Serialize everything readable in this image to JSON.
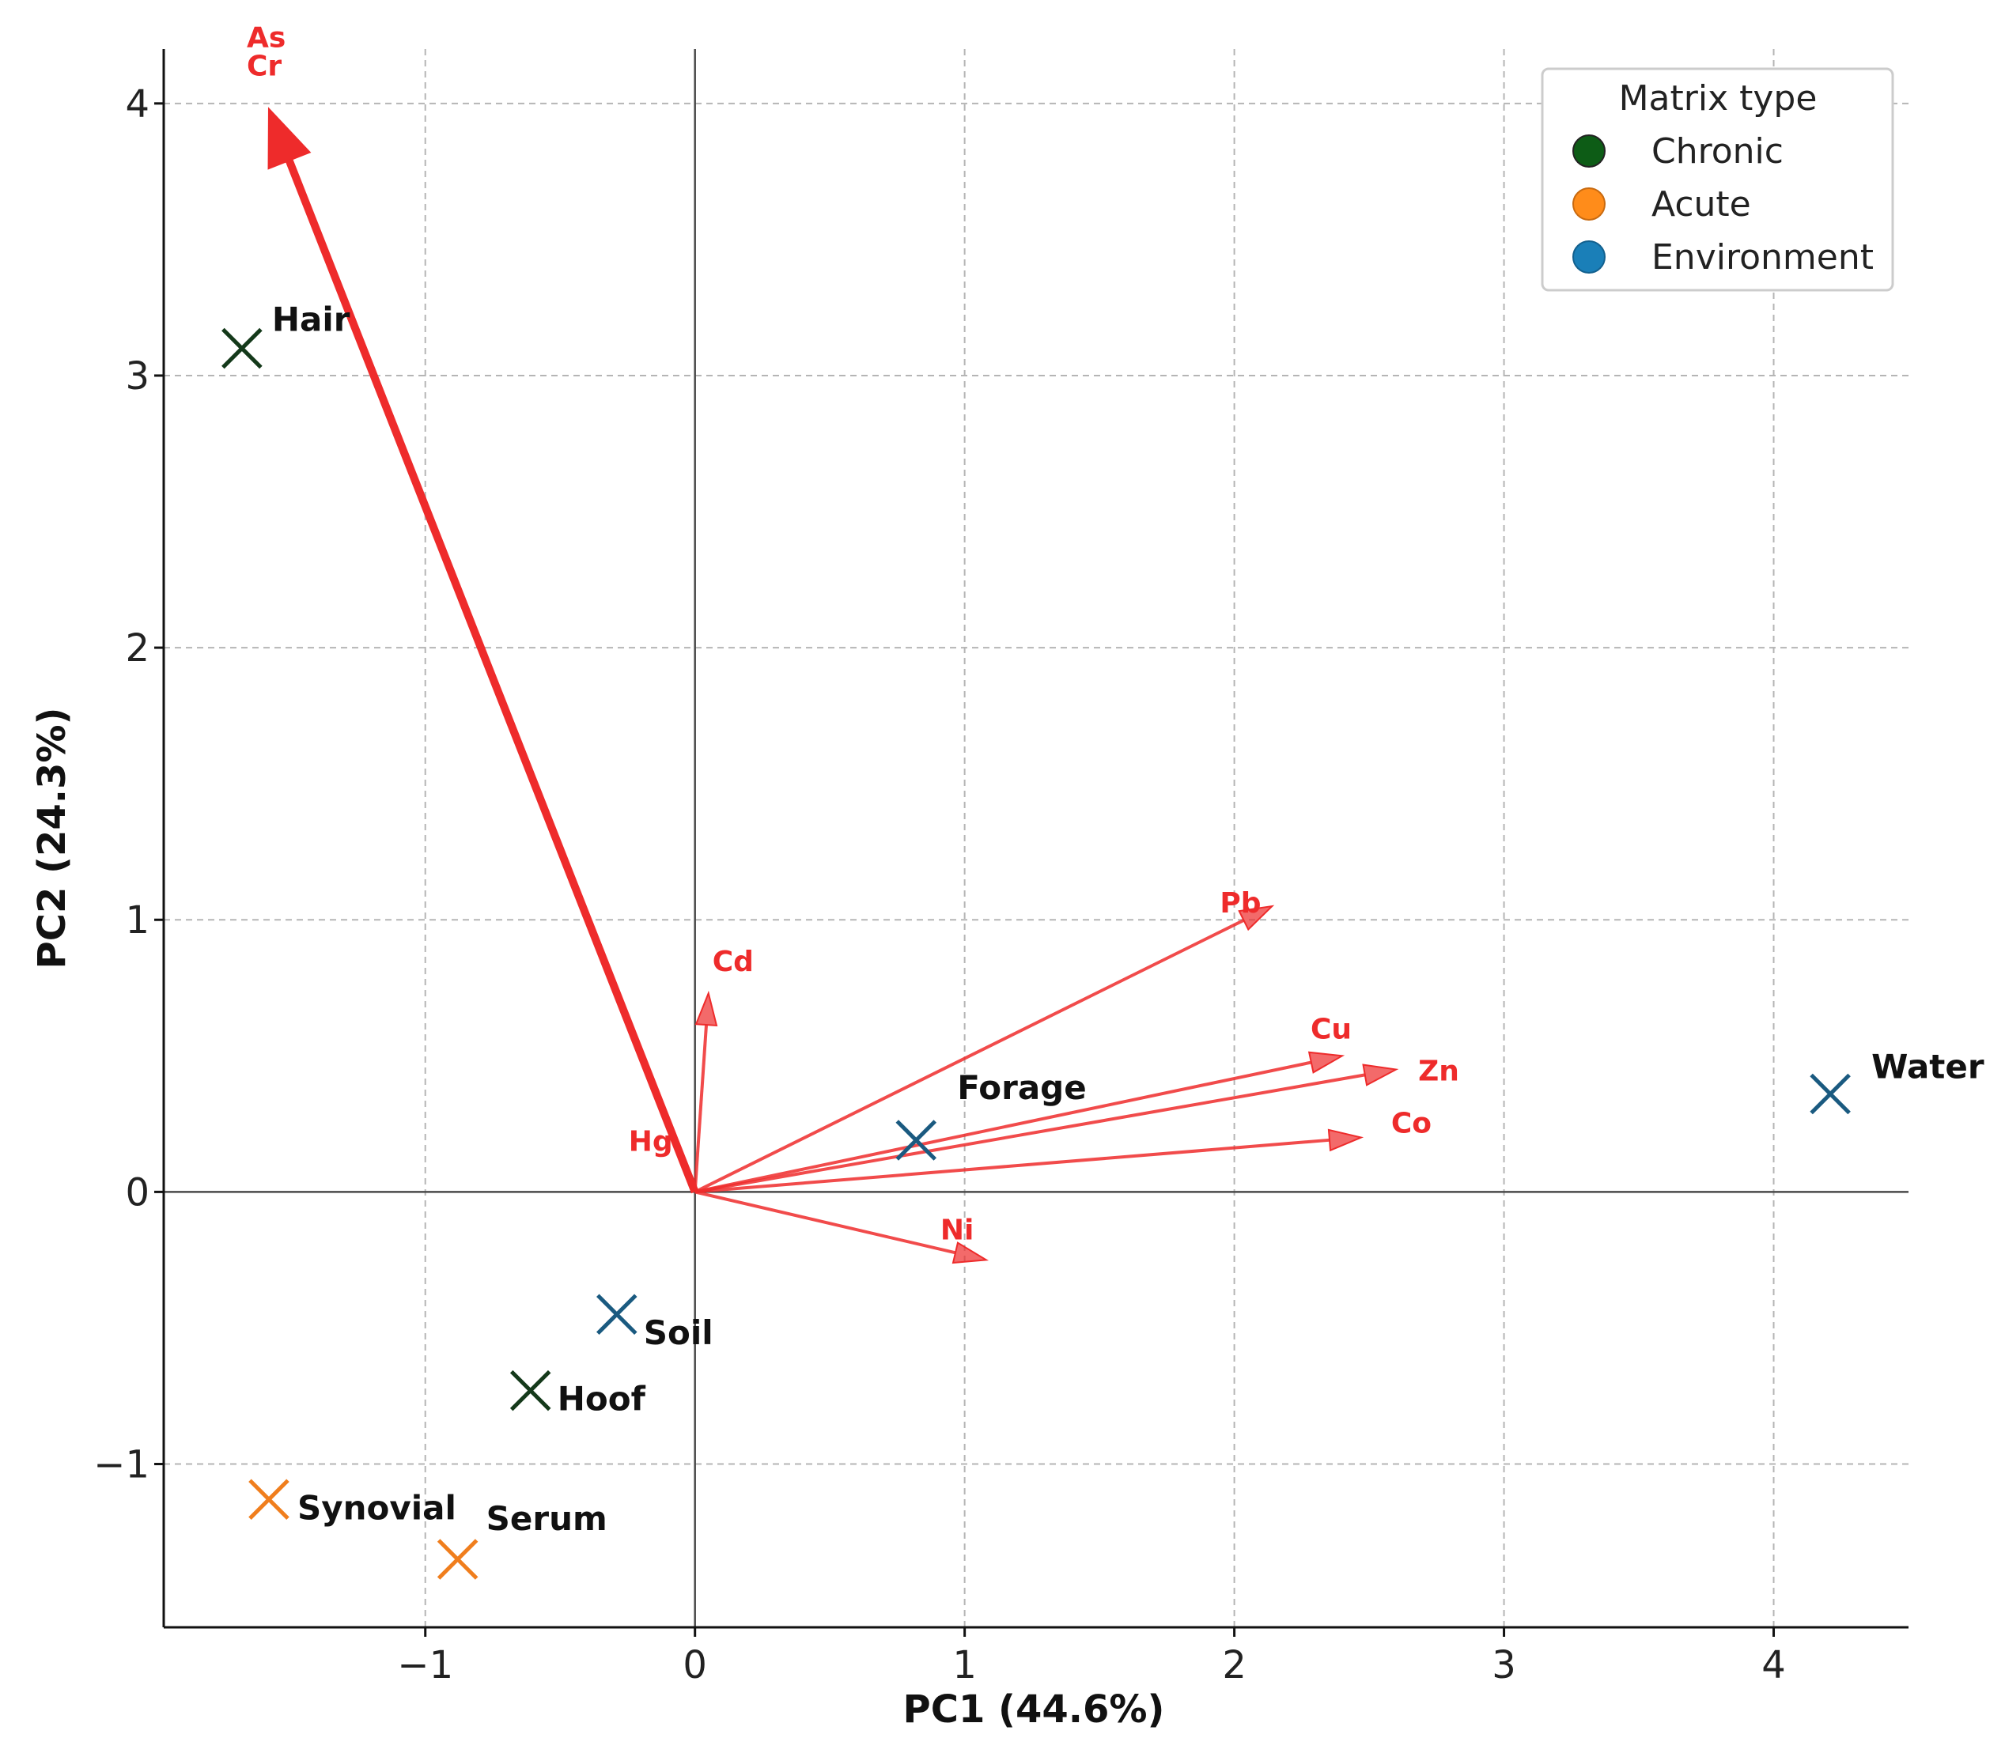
{
  "chart_data": {
    "type": "scatter",
    "subtype": "pca-biplot",
    "xlabel": "PC1 (44.6%)",
    "ylabel": "PC2 (24.3%)",
    "xlim": [
      -1.97,
      4.5
    ],
    "ylim": [
      -1.6,
      4.2
    ],
    "xticks": [
      -1,
      0,
      1,
      2,
      3,
      4
    ],
    "yticks": [
      -1,
      0,
      1,
      2,
      3,
      4
    ],
    "xtick_labels": [
      "−1",
      "0",
      "1",
      "2",
      "3",
      "4"
    ],
    "ytick_labels": [
      "−1",
      "0",
      "1",
      "2",
      "3",
      "4"
    ],
    "grid": true,
    "legend": {
      "title": "Matrix type",
      "placement": "top-right",
      "entries": [
        {
          "label": "Chronic",
          "color": "#0d5c16"
        },
        {
          "label": "Acute",
          "color": "#ff8c1a"
        },
        {
          "label": "Environment",
          "color": "#1a7fb8"
        }
      ]
    },
    "marker_colors": {
      "Chronic": "#14391a",
      "Acute": "#f07e1d",
      "Environment": "#1a5a80"
    },
    "loading_color": "#ee2b2b",
    "samples": [
      {
        "label": "Hair",
        "group": "Chronic",
        "x": -1.68,
        "y": 3.1
      },
      {
        "label": "Hoof",
        "group": "Chronic",
        "x": -0.61,
        "y": -0.73
      },
      {
        "label": "Synovial",
        "group": "Acute",
        "x": -1.58,
        "y": -1.13
      },
      {
        "label": "Serum",
        "group": "Acute",
        "x": -0.88,
        "y": -1.35
      },
      {
        "label": "Soil",
        "group": "Environment",
        "x": -0.29,
        "y": -0.45
      },
      {
        "label": "Forage",
        "group": "Environment",
        "x": 0.82,
        "y": 0.19
      },
      {
        "label": "Water",
        "group": "Environment",
        "x": 4.21,
        "y": 0.36
      }
    ],
    "loadings": [
      {
        "label": "As",
        "x": -1.58,
        "y": 3.98
      },
      {
        "label": "Cr",
        "x": -1.58,
        "y": 3.98
      },
      {
        "label": "Cd",
        "x": 0.05,
        "y": 0.73
      },
      {
        "label": "Hg",
        "x": 0.0,
        "y": 0.0
      },
      {
        "label": "Pb",
        "x": 2.14,
        "y": 1.05
      },
      {
        "label": "Cu",
        "x": 2.4,
        "y": 0.5
      },
      {
        "label": "Zn",
        "x": 2.6,
        "y": 0.45
      },
      {
        "label": "Co",
        "x": 2.47,
        "y": 0.2
      },
      {
        "label": "Ni",
        "x": 1.08,
        "y": -0.25
      }
    ]
  }
}
